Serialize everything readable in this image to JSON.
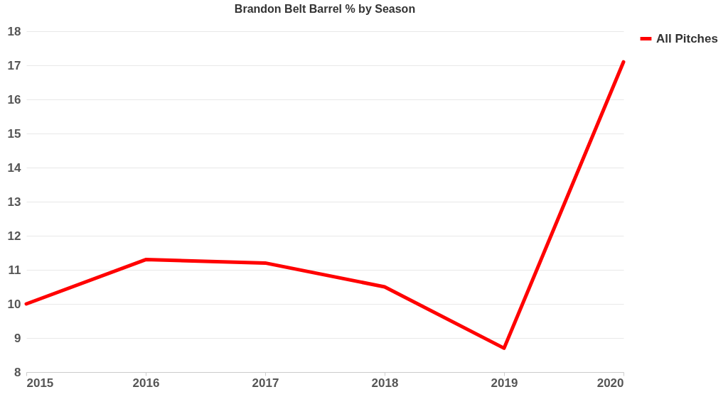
{
  "chart_data": {
    "type": "line",
    "title": "Brandon Belt Barrel % by Season",
    "x": [
      2015,
      2016,
      2017,
      2018,
      2019,
      2020
    ],
    "series": [
      {
        "name": "All Pitches",
        "color": "#ff0000",
        "values": [
          10.0,
          11.3,
          11.2,
          10.5,
          8.7,
          17.1
        ]
      }
    ],
    "xlim": [
      2015,
      2020
    ],
    "xticks": [
      2015,
      2016,
      2017,
      2018,
      2019,
      2020
    ],
    "ylim": [
      8,
      18
    ],
    "yticks": [
      8,
      9,
      10,
      11,
      12,
      13,
      14,
      15,
      16,
      17,
      18
    ],
    "grid": "y",
    "legend": "right"
  }
}
